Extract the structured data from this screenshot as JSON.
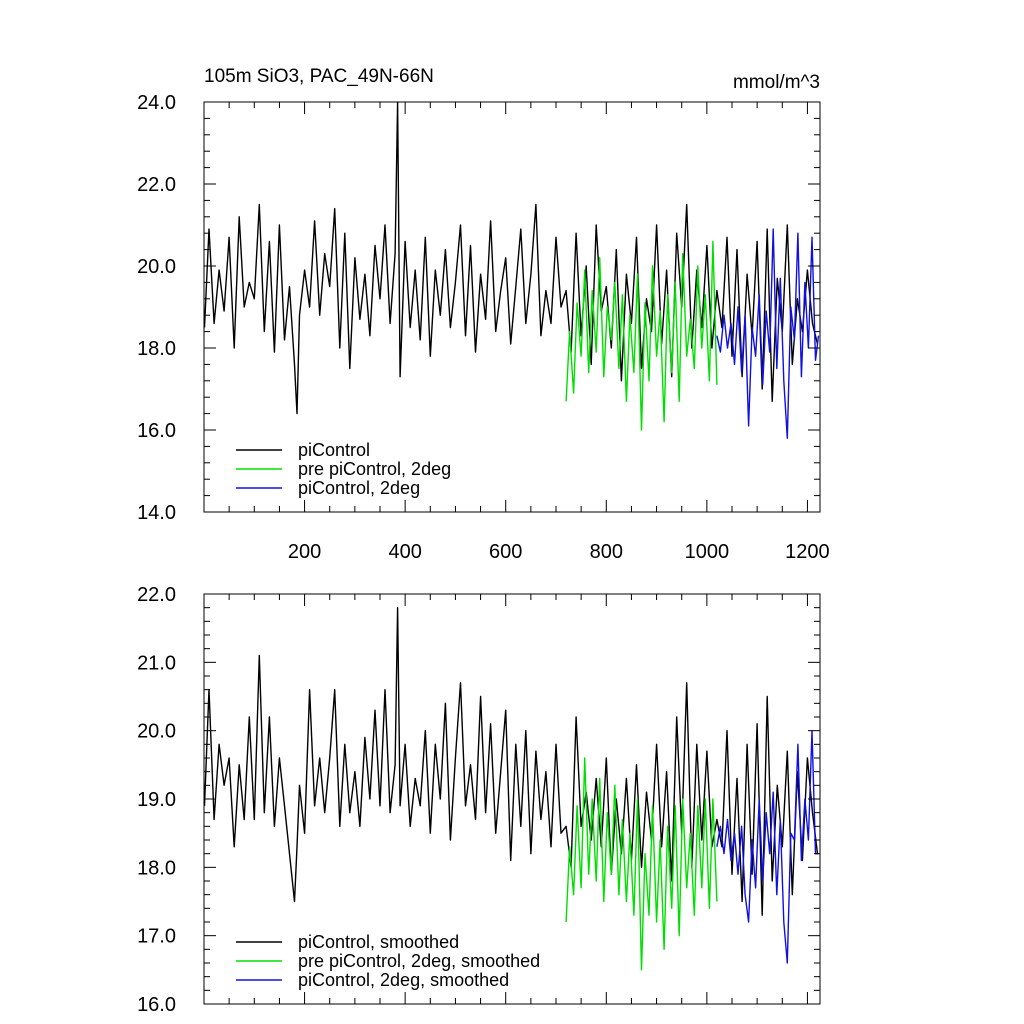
{
  "figure_title": "105m SiO3, PAC_49N-66N",
  "units": "mmol/m^3",
  "colors": {
    "piControl": "#000000",
    "pre_piControl_2deg": "#00e000",
    "piControl_2deg": "#1010e0"
  },
  "chart_data": [
    {
      "type": "line",
      "title": "105m SiO3, PAC_49N-66N",
      "units_label": "mmol/m^3",
      "xlabel": "",
      "ylabel": "",
      "xlim": [
        0,
        1225
      ],
      "ylim": [
        14.0,
        24.0
      ],
      "x_ticks": [
        200,
        400,
        600,
        800,
        1000,
        1200
      ],
      "x_tick_labels": [
        "200",
        "400",
        "600",
        "800",
        "1000",
        "1200"
      ],
      "y_ticks": [
        14.0,
        16.0,
        18.0,
        20.0,
        22.0,
        24.0
      ],
      "y_tick_labels": [
        "14.0",
        "16.0",
        "18.0",
        "20.0",
        "22.0",
        "24.0"
      ],
      "legend_position": "bottom-left",
      "series": [
        {
          "name": "piControl",
          "color": "#000000",
          "x": [
            1,
            10,
            20,
            30,
            40,
            50,
            60,
            70,
            80,
            90,
            100,
            110,
            120,
            130,
            140,
            150,
            160,
            170,
            180,
            185,
            190,
            200,
            210,
            220,
            230,
            240,
            250,
            260,
            270,
            280,
            290,
            300,
            310,
            320,
            330,
            340,
            350,
            360,
            370,
            380,
            385,
            390,
            400,
            410,
            420,
            430,
            440,
            450,
            460,
            470,
            480,
            490,
            500,
            510,
            520,
            530,
            540,
            550,
            560,
            570,
            580,
            590,
            600,
            610,
            620,
            630,
            640,
            650,
            660,
            670,
            680,
            690,
            700,
            710,
            720,
            730,
            740,
            750,
            760,
            770,
            780,
            790,
            800,
            810,
            820,
            830,
            840,
            850,
            860,
            870,
            880,
            890,
            900,
            910,
            920,
            930,
            940,
            950,
            960,
            970,
            980,
            990,
            1000,
            1010,
            1020,
            1030,
            1040,
            1050,
            1060,
            1070,
            1080,
            1090,
            1100,
            1110,
            1120,
            1130,
            1140,
            1150,
            1160,
            1170,
            1180,
            1190,
            1200,
            1210,
            1220
          ],
          "values": [
            18.5,
            20.9,
            18.6,
            19.9,
            18.9,
            20.7,
            18.0,
            21.2,
            19.0,
            19.6,
            19.2,
            21.5,
            18.4,
            20.6,
            17.9,
            21.0,
            18.2,
            19.5,
            17.6,
            16.4,
            18.8,
            19.9,
            19.0,
            21.1,
            18.8,
            20.3,
            19.5,
            21.4,
            18.0,
            20.8,
            17.5,
            20.2,
            18.7,
            19.8,
            18.3,
            20.5,
            19.2,
            21.0,
            18.6,
            20.3,
            24.0,
            17.3,
            20.6,
            18.5,
            19.9,
            18.2,
            20.7,
            17.8,
            19.9,
            18.8,
            20.4,
            18.5,
            19.6,
            21.0,
            18.3,
            20.5,
            17.9,
            19.8,
            18.7,
            21.1,
            18.4,
            19.4,
            20.2,
            18.1,
            19.5,
            20.9,
            18.6,
            19.8,
            21.5,
            18.3,
            19.4,
            18.6,
            20.7,
            19.0,
            19.4,
            17.9,
            20.8,
            18.3,
            20.0,
            17.6,
            21.0,
            18.9,
            19.5,
            18.0,
            20.4,
            17.2,
            19.8,
            18.6,
            20.7,
            17.5,
            19.2,
            18.4,
            21.0,
            18.1,
            19.9,
            17.3,
            20.8,
            19.0,
            21.5,
            18.0,
            19.9,
            18.5,
            20.5,
            18.0,
            19.4,
            18.5,
            20.7,
            17.8,
            20.4,
            17.3,
            19.8,
            18.3,
            20.6,
            17.0,
            20.9,
            16.7,
            19.7,
            18.4,
            21.0,
            17.6,
            19.2,
            18.4,
            19.9,
            18.6,
            18.1
          ]
        },
        {
          "name": "pre piControl, 2deg",
          "color": "#00e000",
          "x": [
            720,
            727,
            735,
            742,
            750,
            757,
            765,
            772,
            780,
            787,
            795,
            802,
            810,
            817,
            825,
            832,
            840,
            847,
            855,
            862,
            870,
            877,
            885,
            892,
            900,
            907,
            915,
            922,
            930,
            937,
            945,
            952,
            960,
            967,
            975,
            982,
            990,
            997,
            1005,
            1012,
            1020
          ],
          "values": [
            16.7,
            18.4,
            16.9,
            19.1,
            17.8,
            19.9,
            17.4,
            19.4,
            17.9,
            20.2,
            17.3,
            19.0,
            18.2,
            19.6,
            17.5,
            19.3,
            16.7,
            18.8,
            17.4,
            19.8,
            16.0,
            19.1,
            17.2,
            20.0,
            17.8,
            18.9,
            16.2,
            19.3,
            17.4,
            19.6,
            16.7,
            20.3,
            17.8,
            18.7,
            17.5,
            20.0,
            18.0,
            19.3,
            17.2,
            20.6,
            17.1
          ]
        },
        {
          "name": "piControl, 2deg",
          "color": "#1010e0",
          "x": [
            1020,
            1027,
            1034,
            1041,
            1048,
            1055,
            1062,
            1069,
            1076,
            1083,
            1090,
            1097,
            1104,
            1111,
            1118,
            1125,
            1132,
            1139,
            1146,
            1153,
            1160,
            1167,
            1174,
            1181,
            1188,
            1195,
            1202,
            1209,
            1216,
            1222
          ],
          "values": [
            18.3,
            17.9,
            18.8,
            18.0,
            18.6,
            17.6,
            19.0,
            17.4,
            18.8,
            16.1,
            18.5,
            17.8,
            19.3,
            17.1,
            18.9,
            17.9,
            20.9,
            17.5,
            19.7,
            17.2,
            15.8,
            19.0,
            18.2,
            20.8,
            17.3,
            19.6,
            18.0,
            20.7,
            17.7,
            18.3
          ]
        }
      ],
      "legend_entries": [
        "piControl",
        "pre piControl, 2deg",
        "piControl, 2deg"
      ]
    },
    {
      "type": "line",
      "title": "",
      "xlabel": "",
      "ylabel": "",
      "xlim": [
        0,
        1225
      ],
      "ylim": [
        16.0,
        22.0
      ],
      "y_ticks": [
        16.0,
        17.0,
        18.0,
        19.0,
        20.0,
        21.0,
        22.0
      ],
      "y_tick_labels": [
        "16.0",
        "17.0",
        "18.0",
        "19.0",
        "20.0",
        "21.0",
        "22.0"
      ],
      "legend_position": "bottom-left",
      "series": [
        {
          "name": "piControl, smoothed",
          "color": "#000000",
          "x": [
            1,
            10,
            20,
            30,
            40,
            50,
            60,
            70,
            80,
            90,
            100,
            110,
            120,
            130,
            140,
            150,
            160,
            170,
            180,
            185,
            190,
            200,
            210,
            220,
            230,
            240,
            250,
            260,
            270,
            280,
            290,
            300,
            310,
            320,
            330,
            340,
            350,
            360,
            370,
            380,
            385,
            390,
            400,
            410,
            420,
            430,
            440,
            450,
            460,
            470,
            480,
            490,
            500,
            510,
            520,
            530,
            540,
            550,
            560,
            570,
            580,
            590,
            600,
            610,
            620,
            630,
            640,
            650,
            660,
            670,
            680,
            690,
            700,
            710,
            720,
            730,
            740,
            750,
            760,
            770,
            780,
            790,
            800,
            810,
            820,
            830,
            840,
            850,
            860,
            870,
            880,
            890,
            900,
            910,
            920,
            930,
            940,
            950,
            960,
            970,
            980,
            990,
            1000,
            1010,
            1020,
            1030,
            1040,
            1050,
            1060,
            1070,
            1080,
            1090,
            1100,
            1110,
            1120,
            1130,
            1140,
            1150,
            1160,
            1170,
            1180,
            1190,
            1200,
            1210,
            1220
          ],
          "values": [
            18.9,
            20.6,
            18.7,
            19.8,
            19.2,
            19.6,
            18.3,
            19.5,
            18.7,
            20.2,
            18.7,
            21.1,
            18.8,
            20.2,
            18.6,
            19.6,
            18.9,
            18.2,
            17.5,
            18.3,
            19.2,
            18.5,
            20.6,
            18.9,
            19.6,
            18.8,
            19.6,
            20.6,
            18.6,
            19.8,
            18.8,
            19.4,
            18.6,
            19.9,
            19.0,
            20.3,
            18.9,
            20.6,
            18.8,
            19.5,
            21.8,
            18.9,
            19.8,
            18.6,
            19.3,
            18.9,
            20.0,
            18.5,
            19.8,
            19.0,
            20.4,
            18.4,
            19.6,
            20.7,
            18.9,
            19.5,
            18.7,
            20.5,
            18.8,
            20.1,
            18.5,
            19.4,
            20.3,
            18.1,
            19.8,
            18.6,
            20.0,
            18.2,
            19.7,
            18.7,
            19.4,
            18.3,
            19.8,
            18.5,
            18.6,
            18.0,
            20.2,
            18.6,
            19.1,
            18.4,
            19.3,
            18.3,
            19.6,
            17.9,
            19.0,
            18.2,
            19.3,
            18.1,
            19.5,
            18.0,
            19.1,
            18.4,
            19.8,
            18.3,
            19.4,
            17.8,
            20.2,
            18.5,
            20.7,
            18.0,
            19.8,
            18.4,
            19.7,
            18.3,
            18.7,
            18.3,
            20.0,
            17.9,
            19.3,
            17.5,
            19.8,
            17.9,
            20.1,
            17.3,
            20.5,
            17.8,
            19.2,
            18.3,
            19.7,
            17.6,
            19.4,
            18.1,
            19.6,
            18.8,
            18.2
          ]
        },
        {
          "name": "pre piControl, 2deg, smoothed",
          "color": "#00e000",
          "x": [
            720,
            727,
            735,
            742,
            750,
            757,
            765,
            772,
            780,
            787,
            795,
            802,
            810,
            817,
            825,
            832,
            840,
            847,
            855,
            862,
            870,
            877,
            885,
            892,
            900,
            907,
            915,
            922,
            930,
            937,
            945,
            952,
            960,
            967,
            975,
            982,
            990,
            997,
            1005,
            1012,
            1020
          ],
          "values": [
            17.2,
            18.3,
            17.6,
            18.9,
            17.7,
            19.6,
            17.9,
            19.0,
            17.8,
            19.3,
            17.5,
            18.8,
            17.9,
            19.2,
            17.6,
            18.7,
            17.5,
            18.5,
            17.3,
            19.0,
            16.5,
            18.2,
            17.3,
            18.9,
            17.2,
            18.4,
            16.8,
            18.6,
            17.4,
            18.9,
            17.0,
            19.0,
            17.7,
            18.5,
            17.3,
            18.9,
            17.7,
            19.0,
            17.4,
            19.0,
            17.5
          ]
        },
        {
          "name": "piControl, 2deg, smoothed",
          "color": "#1010e0",
          "x": [
            1020,
            1027,
            1034,
            1041,
            1048,
            1055,
            1062,
            1069,
            1076,
            1083,
            1090,
            1097,
            1104,
            1111,
            1118,
            1125,
            1132,
            1139,
            1146,
            1153,
            1160,
            1167,
            1174,
            1181,
            1188,
            1195,
            1202,
            1209,
            1216,
            1222
          ],
          "values": [
            18.3,
            18.6,
            18.2,
            18.7,
            18.1,
            18.5,
            17.9,
            18.6,
            17.6,
            17.2,
            18.4,
            17.7,
            19.0,
            17.8,
            18.8,
            18.2,
            19.1,
            17.6,
            18.7,
            17.2,
            16.6,
            18.5,
            18.4,
            19.8,
            18.1,
            19.0,
            18.4,
            20.0,
            18.2,
            18.2
          ]
        }
      ],
      "legend_entries": [
        "piControl, smoothed",
        "pre piControl, 2deg, smoothed",
        "piControl, 2deg, smoothed"
      ]
    }
  ]
}
